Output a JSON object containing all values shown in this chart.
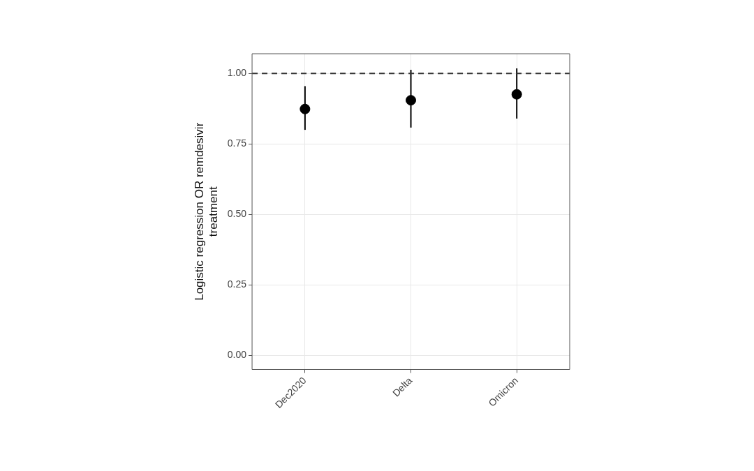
{
  "chart_data": {
    "type": "scatter",
    "ylabel": "Logistic regression OR remdesivir\ntreatment",
    "categories": [
      "Dec2020",
      "Delta",
      "Omicron"
    ],
    "series": [
      {
        "color": "#000000",
        "values": [
          0.874,
          0.905,
          0.926
        ],
        "errors": [
          [
            0.8,
            0.955
          ],
          [
            0.808,
            1.013
          ],
          [
            0.84,
            1.018
          ]
        ]
      }
    ],
    "ylim": [
      -0.05,
      1.07
    ],
    "yticks": [
      {
        "value": 0,
        "label": "0.00"
      },
      {
        "value": 0.25,
        "label": "0.25"
      },
      {
        "value": 0.5,
        "label": "0.50"
      },
      {
        "value": 0.75,
        "label": "0.75"
      },
      {
        "value": 1,
        "label": "1.00"
      }
    ],
    "ref_lines": [
      {
        "axis": "y",
        "value": 1,
        "color": "#333333",
        "line_style": "dashed"
      }
    ],
    "grid": true,
    "legend": false,
    "marker": "circle"
  }
}
